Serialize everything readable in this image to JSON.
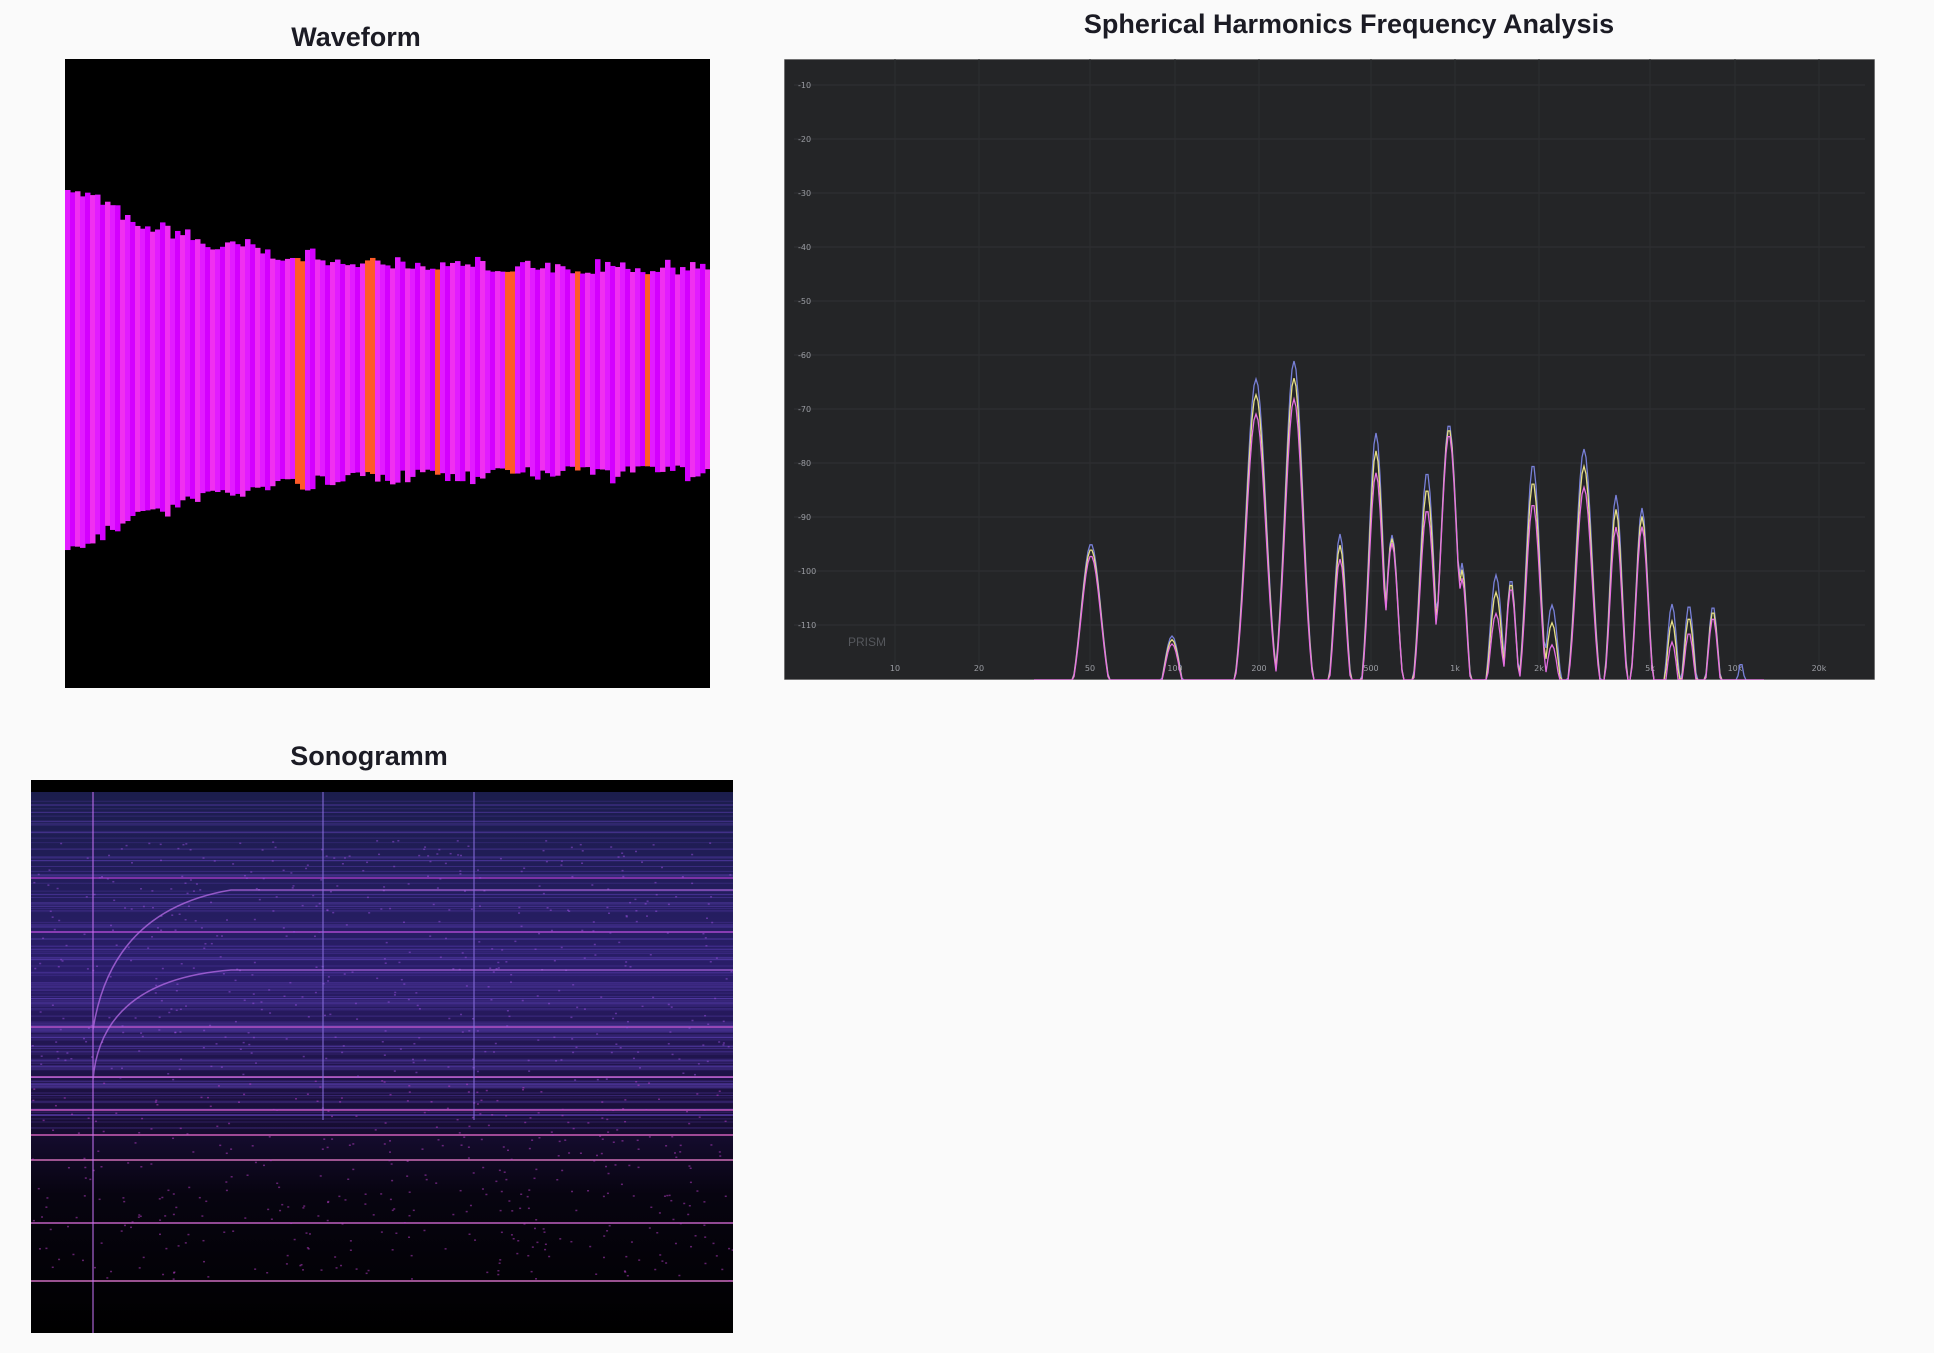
{
  "panels": {
    "waveform": {
      "title": "Waveform"
    },
    "spectrum": {
      "title": "Spherical Harmonics Frequency Analysis",
      "y_labels": [
        "-10",
        "-20",
        "-30",
        "-40",
        "-50",
        "-60",
        "-70",
        "-80",
        "-90",
        "-100",
        "-110"
      ],
      "x_labels": [
        "10",
        "20",
        "50",
        "100",
        "200",
        "500",
        "1k",
        "2k",
        "5k",
        "10k",
        "20k"
      ],
      "watermark": "PRISM"
    },
    "sonogram": {
      "title": "Sonogramm"
    }
  }
}
